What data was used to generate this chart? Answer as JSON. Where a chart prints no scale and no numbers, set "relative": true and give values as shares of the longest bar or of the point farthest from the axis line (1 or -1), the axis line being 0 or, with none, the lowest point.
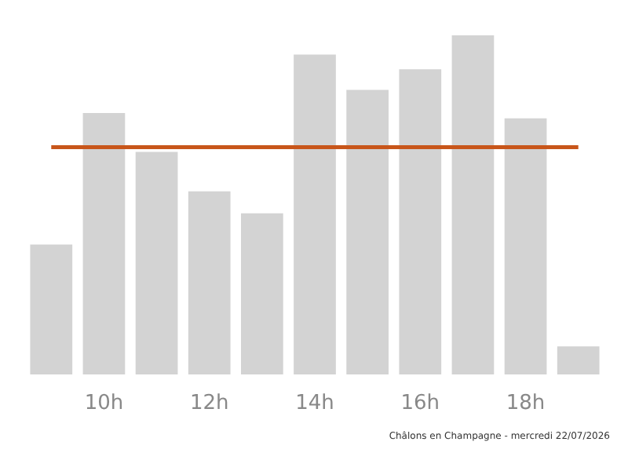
{
  "chart_data": {
    "type": "bar",
    "relative": true,
    "categories": [
      null,
      "10h",
      null,
      "12h",
      null,
      "14h",
      null,
      "16h",
      null,
      "18h",
      null
    ],
    "values": [
      0.383,
      0.771,
      0.656,
      0.54,
      0.475,
      0.943,
      0.839,
      0.9,
      1,
      0.755,
      0.083
    ],
    "color": "#d3d3d3",
    "ref_lines": [
      {
        "axis": "y",
        "value": 0.67,
        "color": "#c8561a"
      }
    ],
    "annotations": [
      "Châlons en Champagne - mercredi 22/07/2026"
    ]
  }
}
